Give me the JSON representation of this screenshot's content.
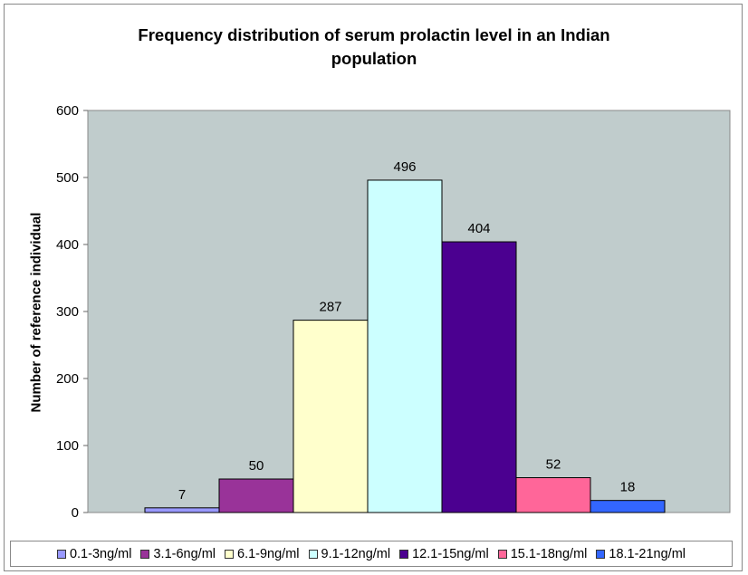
{
  "chart_data": {
    "type": "bar",
    "title": "Frequency distribution of serum prolactin level in an Indian population",
    "title_lines": [
      "Frequency distribution of serum prolactin level in an Indian",
      "population"
    ],
    "xlabel": "",
    "ylabel": "Number of reference individual",
    "ylim": [
      0,
      600
    ],
    "yticks": [
      "0",
      "100",
      "200",
      "300",
      "400",
      "500",
      "600"
    ],
    "grid": false,
    "legend_position": "bottom",
    "categories": [
      "0.1-3ng/ml",
      "3.1-6ng/ml",
      "6.1-9ng/ml",
      "9.1-12ng/ml",
      "12.1-15ng/ml",
      "15.1-18ng/ml",
      "18.1-21ng/ml"
    ],
    "values": [
      7,
      50,
      287,
      496,
      404,
      52,
      18
    ],
    "colors": [
      "#9999ff",
      "#993399",
      "#ffffcc",
      "#ccffff",
      "#4b0090",
      "#ff6699",
      "#3366ff"
    ],
    "plot_background": "#c0cccc"
  }
}
